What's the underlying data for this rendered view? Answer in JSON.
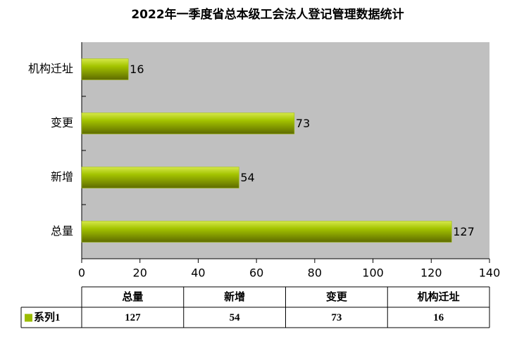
{
  "chart_data": {
    "type": "bar",
    "orientation": "horizontal",
    "title": "2022年一季度省总本级工会法人登记管理数据统计",
    "categories": [
      "总量",
      "新增",
      "变更",
      "机构迁址"
    ],
    "series": [
      {
        "name": "系列1",
        "color": "#9cbc00",
        "values": [
          127,
          54,
          73,
          16
        ]
      }
    ],
    "xlim": [
      0,
      140
    ],
    "xticks": [
      0,
      20,
      40,
      60,
      80,
      100,
      120,
      140
    ],
    "grid": false,
    "data_labels": true,
    "data_table": true
  }
}
